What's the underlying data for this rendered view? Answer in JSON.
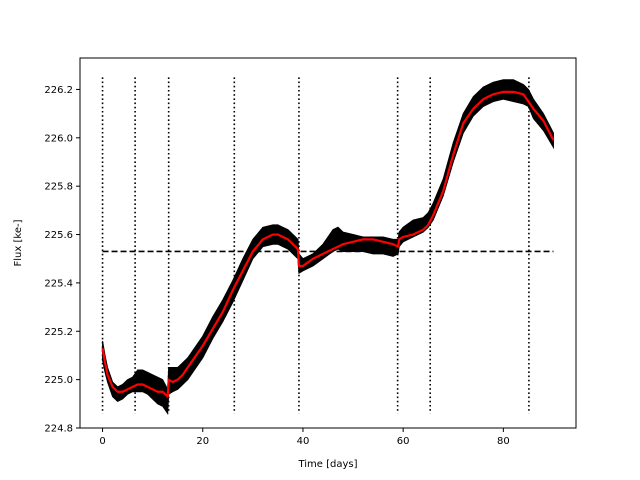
{
  "chart_data": {
    "type": "line",
    "xlabel": "Time [days]",
    "ylabel": "Flux [ke-]",
    "xlim": [
      -4.5,
      94.5
    ],
    "ylim": [
      224.8,
      226.33
    ],
    "xticks": [
      0,
      20,
      40,
      60,
      80
    ],
    "xtick_labels": [
      "0",
      "20",
      "40",
      "60",
      "80"
    ],
    "yticks": [
      224.8,
      225.0,
      225.2,
      225.4,
      225.6,
      225.8,
      226.0,
      226.2
    ],
    "ytick_labels": [
      "224.8",
      "225.0",
      "225.2",
      "225.4",
      "225.6",
      "225.8",
      "226.0",
      "226.2"
    ],
    "grid": false,
    "series": [
      {
        "style": "black-band",
        "color": "#000000",
        "x": [
          0,
          0.5,
          1,
          2,
          3,
          4,
          5,
          6,
          7,
          8,
          9,
          10,
          11,
          12,
          13,
          13.2,
          14,
          15,
          16,
          17,
          18,
          20,
          22,
          24,
          26,
          28,
          30,
          32,
          34,
          35,
          36,
          37,
          38,
          39,
          39.2,
          40,
          42,
          44,
          46,
          47,
          48,
          50,
          52,
          54,
          56,
          58,
          59,
          59.2,
          60,
          62,
          64,
          65,
          66,
          68,
          70,
          72,
          74,
          76,
          78,
          80,
          82,
          84,
          85,
          86,
          88,
          90
        ],
        "upper": [
          225.16,
          225.1,
          225.05,
          224.99,
          224.97,
          224.98,
          225.0,
          225.01,
          225.04,
          225.04,
          225.03,
          225.02,
          225.01,
          225.0,
          224.96,
          225.05,
          225.05,
          225.05,
          225.07,
          225.09,
          225.12,
          225.18,
          225.26,
          225.33,
          225.41,
          225.5,
          225.58,
          225.63,
          225.64,
          225.64,
          225.63,
          225.62,
          225.6,
          225.58,
          225.52,
          225.5,
          225.52,
          225.56,
          225.62,
          225.63,
          225.61,
          225.6,
          225.59,
          225.59,
          225.59,
          225.58,
          225.58,
          225.61,
          225.63,
          225.66,
          225.67,
          225.69,
          225.73,
          225.83,
          225.98,
          226.1,
          226.17,
          226.21,
          226.23,
          226.24,
          226.24,
          226.22,
          226.2,
          226.16,
          226.1,
          226.02
        ],
        "lower": [
          225.08,
          225.03,
          224.99,
          224.93,
          224.91,
          224.92,
          224.94,
          224.95,
          224.95,
          224.95,
          224.94,
          224.92,
          224.9,
          224.89,
          224.86,
          224.94,
          224.95,
          224.96,
          224.98,
          225.0,
          225.03,
          225.09,
          225.17,
          225.24,
          225.32,
          225.41,
          225.5,
          225.55,
          225.56,
          225.56,
          225.55,
          225.54,
          225.52,
          225.5,
          225.44,
          225.45,
          225.47,
          225.5,
          225.53,
          225.54,
          225.53,
          225.53,
          225.53,
          225.52,
          225.52,
          225.51,
          225.52,
          225.55,
          225.57,
          225.59,
          225.61,
          225.63,
          225.66,
          225.76,
          225.9,
          226.02,
          226.09,
          226.13,
          226.15,
          226.16,
          226.15,
          226.14,
          226.13,
          226.08,
          226.03,
          225.96
        ]
      },
      {
        "style": "red-line",
        "color": "#ff0000",
        "x": [
          0,
          0.5,
          1,
          2,
          3,
          4,
          5,
          6,
          7,
          8,
          9,
          10,
          11,
          12,
          13,
          13.2,
          14,
          15,
          16,
          17,
          18,
          20,
          22,
          24,
          26,
          28,
          30,
          32,
          34,
          35,
          36,
          37,
          38,
          39,
          39.2,
          40,
          42,
          44,
          46,
          48,
          50,
          52,
          54,
          56,
          58,
          59,
          59.2,
          60,
          62,
          64,
          65,
          66,
          68,
          70,
          72,
          74,
          76,
          78,
          80,
          82,
          84,
          85,
          86,
          88,
          90
        ],
        "y": [
          225.13,
          225.07,
          225.02,
          224.97,
          224.95,
          224.95,
          224.96,
          224.97,
          224.98,
          224.98,
          224.97,
          224.96,
          224.95,
          224.95,
          224.93,
          225.0,
          224.99,
          225.0,
          225.02,
          225.05,
          225.08,
          225.14,
          225.21,
          225.28,
          225.37,
          225.45,
          225.53,
          225.58,
          225.6,
          225.6,
          225.59,
          225.58,
          225.56,
          225.54,
          225.47,
          225.47,
          225.5,
          225.52,
          225.54,
          225.56,
          225.57,
          225.58,
          225.58,
          225.57,
          225.56,
          225.55,
          225.58,
          225.59,
          225.6,
          225.62,
          225.64,
          225.68,
          225.78,
          225.93,
          226.06,
          226.12,
          226.16,
          226.18,
          226.19,
          226.19,
          226.18,
          226.15,
          226.12,
          226.07,
          225.99
        ]
      }
    ],
    "reference_lines": {
      "horizontal_dashed_y": 225.53,
      "horizontal_dashed_x_range": [
        0,
        90
      ],
      "vertical_dotted_x": [
        0,
        6.5,
        13.2,
        26.3,
        39.2,
        58.9,
        65.4,
        85.1
      ],
      "vertical_dotted_y_range": [
        224.86,
        226.25
      ]
    }
  }
}
